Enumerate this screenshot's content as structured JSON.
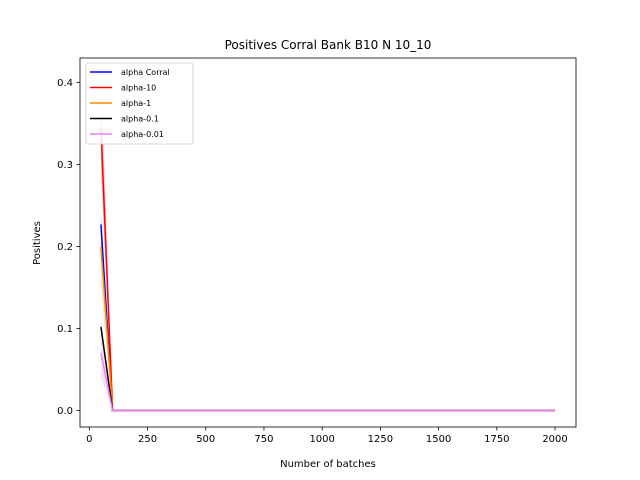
{
  "chart_data": {
    "type": "line",
    "title": "Positives Corral Bank B10 N 10_10",
    "xlabel": "Number of batches",
    "ylabel": "Positives",
    "xlim": [
      -40,
      2090
    ],
    "ylim": [
      -0.02,
      0.43
    ],
    "xticks": [
      0,
      250,
      500,
      750,
      1000,
      1250,
      1500,
      1750,
      2000
    ],
    "yticks": [
      0.0,
      0.1,
      0.2,
      0.3,
      0.4
    ],
    "ytick_labels": [
      "0.0",
      "0.1",
      "0.2",
      "0.3",
      "0.4"
    ],
    "grid": false,
    "legend_position": "top-left",
    "series": [
      {
        "name": "alpha Corral",
        "color": "#0000ff",
        "x": [
          50,
          100,
          2000
        ],
        "y": [
          0.227,
          0.0,
          0.0
        ],
        "band_upper": [
          0.24,
          0.0,
          0.0
        ],
        "band_lower": [
          0.2,
          0.0,
          0.0
        ]
      },
      {
        "name": "alpha-10",
        "color": "#ff0000",
        "x": [
          50,
          100,
          2000
        ],
        "y": [
          0.345,
          0.0,
          0.0
        ],
        "band_upper": [
          0.41,
          0.0,
          0.0
        ],
        "band_lower": [
          0.29,
          0.0,
          0.0
        ]
      },
      {
        "name": "alpha-1",
        "color": "#ff8c00",
        "x": [
          50,
          100,
          2000
        ],
        "y": [
          0.2,
          0.0,
          0.0
        ],
        "band_upper": [
          0.21,
          0.0,
          0.0
        ],
        "band_lower": [
          0.15,
          0.0,
          0.0
        ]
      },
      {
        "name": "alpha-0.1",
        "color": "#000000",
        "x": [
          50,
          100,
          2000
        ],
        "y": [
          0.102,
          0.0,
          0.0
        ],
        "band_upper": [
          0.105,
          0.0,
          0.0
        ],
        "band_lower": [
          0.095,
          0.0,
          0.0
        ]
      },
      {
        "name": "alpha-0.01",
        "color": "#ee82ee",
        "x": [
          50,
          100,
          2000
        ],
        "y": [
          0.07,
          0.0,
          0.0
        ],
        "band_upper": [
          0.11,
          0.0,
          0.0
        ],
        "band_lower": [
          0.04,
          0.0,
          0.0
        ]
      }
    ]
  }
}
